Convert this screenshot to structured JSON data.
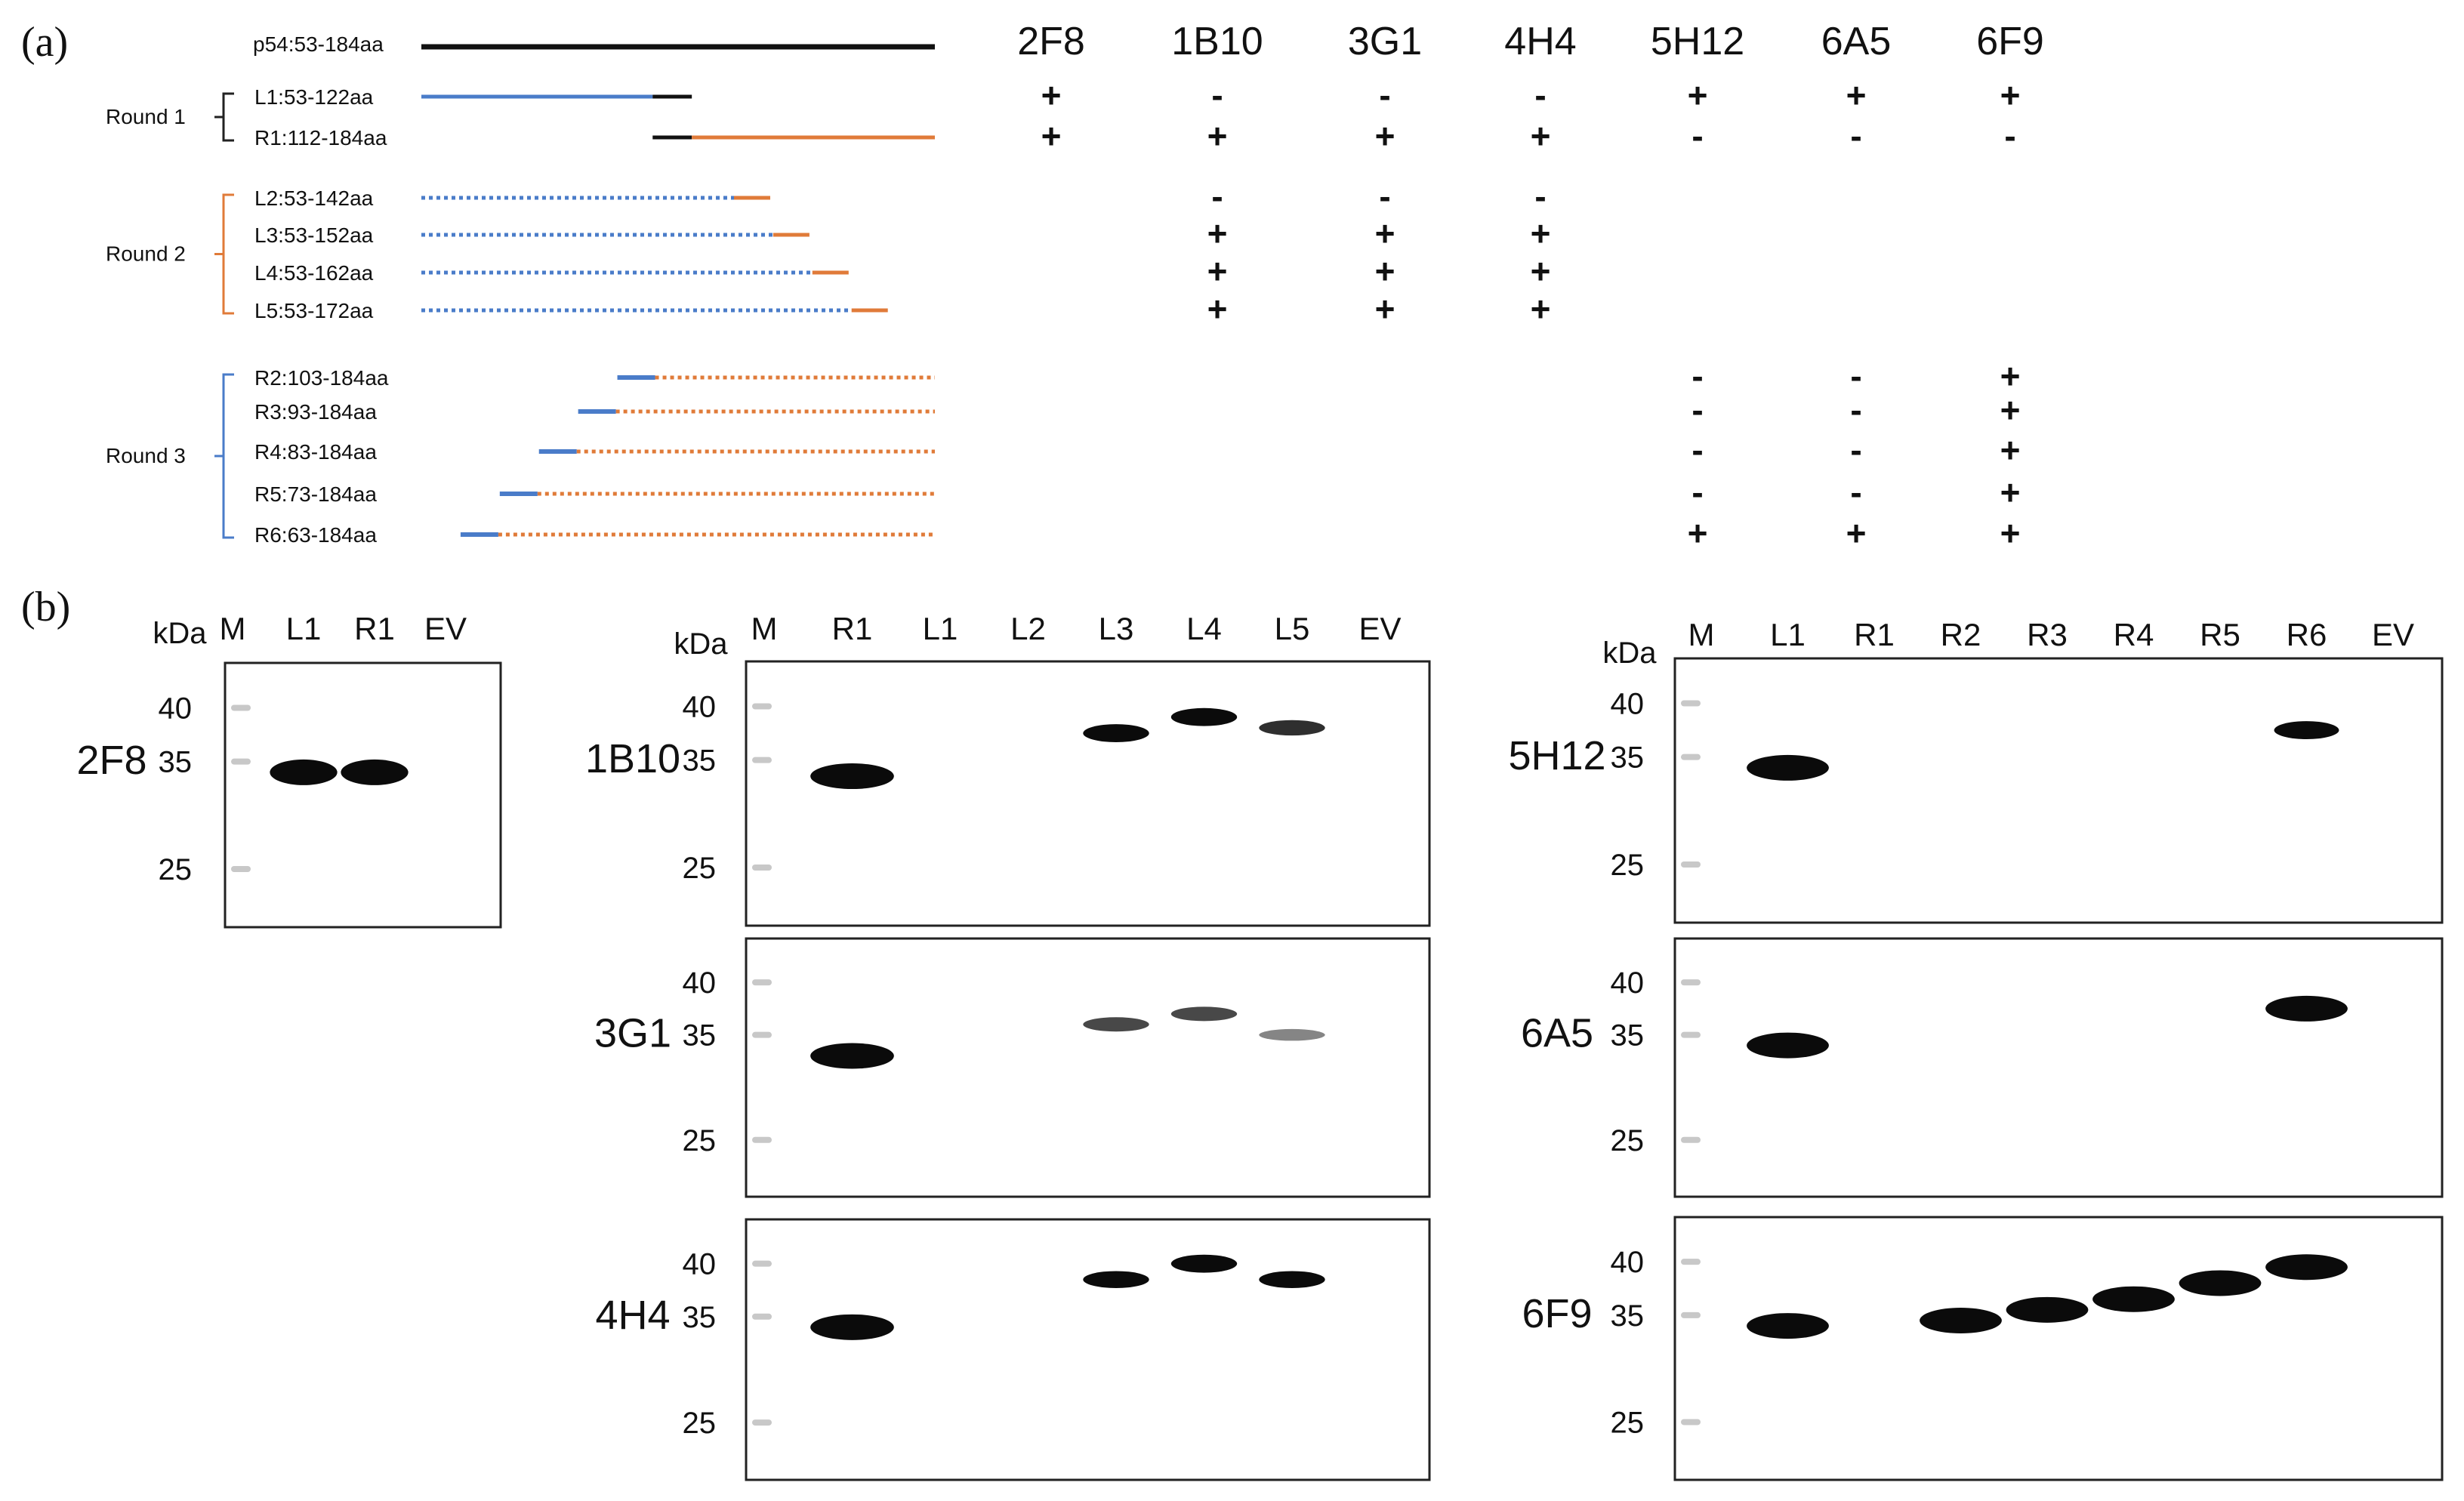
{
  "figure": {
    "panel_a": {
      "label": "(a)",
      "full_construct": {
        "label": "p54:53-184aa",
        "start": 53,
        "end": 184
      },
      "antibodies": [
        "2F8",
        "1B10",
        "3G1",
        "4H4",
        "5H12",
        "6A5",
        "6F9"
      ],
      "rounds": [
        {
          "label": "Round 1",
          "bracket_color": "#222222",
          "constructs": [
            {
              "id": "L1",
              "label": "L1:53-122aa",
              "start": 53,
              "end": 122,
              "side": "L",
              "results": {
                "2F8": "+",
                "1B10": "-",
                "3G1": "-",
                "4H4": "-",
                "5H12": "+",
                "6A5": "+",
                "6F9": "+"
              }
            },
            {
              "id": "R1",
              "label": "R1:112-184aa",
              "start": 112,
              "end": 184,
              "side": "R",
              "results": {
                "2F8": "+",
                "1B10": "+",
                "3G1": "+",
                "4H4": "+",
                "5H12": "-",
                "6A5": "-",
                "6F9": "-"
              }
            }
          ]
        },
        {
          "label": "Round 2",
          "bracket_color": "#e07b39",
          "constructs": [
            {
              "id": "L2",
              "label": "L2:53-142aa",
              "start": 53,
              "end": 142,
              "side": "L",
              "results": {
                "1B10": "-",
                "3G1": "-",
                "4H4": "-"
              }
            },
            {
              "id": "L3",
              "label": "L3:53-152aa",
              "start": 53,
              "end": 152,
              "side": "L",
              "results": {
                "1B10": "+",
                "3G1": "+",
                "4H4": "+"
              }
            },
            {
              "id": "L4",
              "label": "L4:53-162aa",
              "start": 53,
              "end": 162,
              "side": "L",
              "results": {
                "1B10": "+",
                "3G1": "+",
                "4H4": "+"
              }
            },
            {
              "id": "L5",
              "label": "L5:53-172aa",
              "start": 53,
              "end": 172,
              "side": "L",
              "results": {
                "1B10": "+",
                "3G1": "+",
                "4H4": "+"
              }
            }
          ]
        },
        {
          "label": "Round 3",
          "bracket_color": "#4a7cc9",
          "constructs": [
            {
              "id": "R2",
              "label": "R2:103-184aa",
              "start": 103,
              "end": 184,
              "side": "R",
              "results": {
                "5H12": "-",
                "6A5": "-",
                "6F9": "+"
              }
            },
            {
              "id": "R3",
              "label": "R3:93-184aa",
              "start": 93,
              "end": 184,
              "side": "R",
              "results": {
                "5H12": "-",
                "6A5": "-",
                "6F9": "+"
              }
            },
            {
              "id": "R4",
              "label": "R4:83-184aa",
              "start": 83,
              "end": 184,
              "side": "R",
              "results": {
                "5H12": "-",
                "6A5": "-",
                "6F9": "+"
              }
            },
            {
              "id": "R5",
              "label": "R5:73-184aa",
              "start": 73,
              "end": 184,
              "side": "R",
              "results": {
                "5H12": "-",
                "6A5": "-",
                "6F9": "+"
              }
            },
            {
              "id": "R6",
              "label": "R6:63-184aa",
              "start": 63,
              "end": 184,
              "side": "R",
              "results": {
                "5H12": "+",
                "6A5": "+",
                "6F9": "+"
              }
            }
          ]
        }
      ]
    },
    "panel_b": {
      "label": "(b)",
      "kda_label": "kDa",
      "groups": [
        {
          "id": "g1",
          "lanes": [
            "M",
            "L1",
            "R1",
            "EV"
          ],
          "blots": [
            {
              "antibody": "2F8",
              "markers": [
                40,
                35,
                25
              ],
              "bands": [
                {
                  "lane": "L1",
                  "kda": 34,
                  "intensity": 0.95
                },
                {
                  "lane": "R1",
                  "kda": 34,
                  "intensity": 0.95
                }
              ]
            }
          ]
        },
        {
          "id": "g2",
          "lanes": [
            "M",
            "R1",
            "L1",
            "L2",
            "L3",
            "L4",
            "L5",
            "EV"
          ],
          "blots": [
            {
              "antibody": "1B10",
              "markers": [
                40,
                35,
                25
              ],
              "bands": [
                {
                  "lane": "R1",
                  "kda": 33.5,
                  "intensity": 0.95
                },
                {
                  "lane": "L3",
                  "kda": 37.5,
                  "intensity": 0.85
                },
                {
                  "lane": "L4",
                  "kda": 39,
                  "intensity": 0.85
                },
                {
                  "lane": "L5",
                  "kda": 38,
                  "intensity": 0.6
                }
              ]
            },
            {
              "antibody": "3G1",
              "markers": [
                40,
                35,
                25
              ],
              "bands": [
                {
                  "lane": "R1",
                  "kda": 33,
                  "intensity": 1.0
                },
                {
                  "lane": "L3",
                  "kda": 36,
                  "intensity": 0.5
                },
                {
                  "lane": "L4",
                  "kda": 37,
                  "intensity": 0.5
                },
                {
                  "lane": "L5",
                  "kda": 35,
                  "intensity": 0.25
                }
              ]
            },
            {
              "antibody": "4H4",
              "markers": [
                40,
                35,
                25
              ],
              "bands": [
                {
                  "lane": "R1",
                  "kda": 34,
                  "intensity": 1.0
                },
                {
                  "lane": "L3",
                  "kda": 38.5,
                  "intensity": 0.75
                },
                {
                  "lane": "L4",
                  "kda": 40,
                  "intensity": 0.85
                },
                {
                  "lane": "L5",
                  "kda": 38.5,
                  "intensity": 0.75
                }
              ]
            }
          ]
        },
        {
          "id": "g3",
          "lanes": [
            "M",
            "L1",
            "R1",
            "R2",
            "R3",
            "R4",
            "R5",
            "R6",
            "EV"
          ],
          "blots": [
            {
              "antibody": "5H12",
              "markers": [
                40,
                35,
                25
              ],
              "bands": [
                {
                  "lane": "L1",
                  "kda": 34,
                  "intensity": 0.95
                },
                {
                  "lane": "R6",
                  "kda": 37.5,
                  "intensity": 0.85
                }
              ]
            },
            {
              "antibody": "6A5",
              "markers": [
                40,
                35,
                25
              ],
              "bands": [
                {
                  "lane": "L1",
                  "kda": 34,
                  "intensity": 0.95
                },
                {
                  "lane": "R6",
                  "kda": 37.5,
                  "intensity": 0.9
                }
              ]
            },
            {
              "antibody": "6F9",
              "markers": [
                40,
                35,
                25
              ],
              "bands": [
                {
                  "lane": "L1",
                  "kda": 34,
                  "intensity": 0.9
                },
                {
                  "lane": "R2",
                  "kda": 34.5,
                  "intensity": 0.9
                },
                {
                  "lane": "R3",
                  "kda": 35.5,
                  "intensity": 0.95
                },
                {
                  "lane": "R4",
                  "kda": 36.5,
                  "intensity": 0.95
                },
                {
                  "lane": "R5",
                  "kda": 38,
                  "intensity": 0.9
                },
                {
                  "lane": "R6",
                  "kda": 39.5,
                  "intensity": 0.95
                }
              ]
            }
          ]
        }
      ]
    }
  },
  "colors": {
    "black_segment": "#111111",
    "left_part": "#4a7cc9",
    "right_part": "#e07b39",
    "band": "#0b0b0b",
    "blot_frame": "#222222",
    "ladder": "#c8c8c8"
  }
}
